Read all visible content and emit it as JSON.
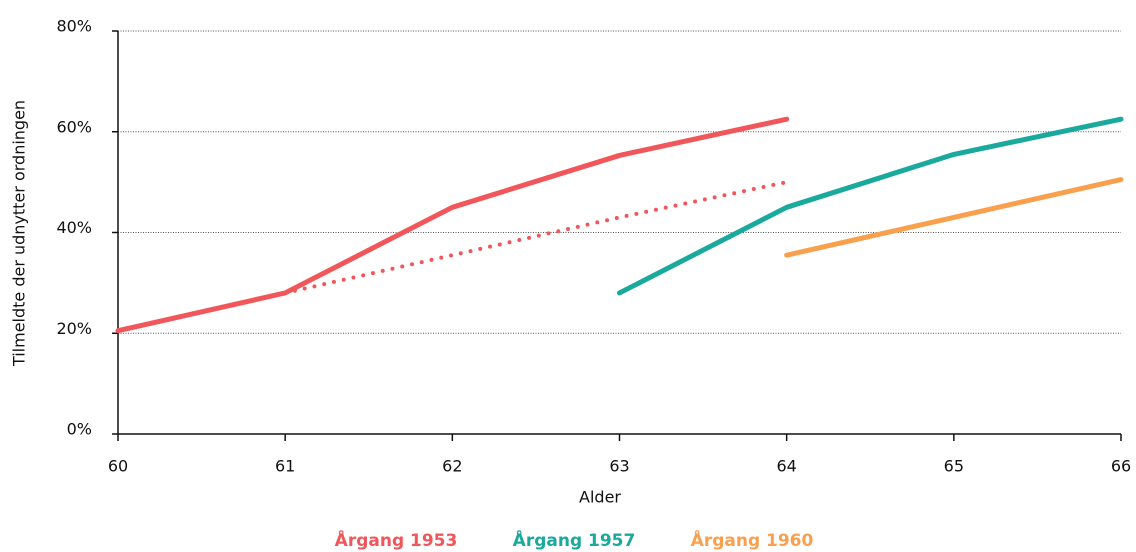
{
  "chart_data": {
    "type": "line",
    "x_label": "Alder",
    "y_label": "Tilmeldte der udnytter ordningen",
    "x": [
      60,
      61,
      62,
      63,
      64,
      65,
      66
    ],
    "series": [
      {
        "name": "Årgang 1953",
        "color": "#f0565a",
        "style": "solid",
        "values": [
          20.5,
          28,
          45,
          55.3,
          62.5,
          null,
          null
        ]
      },
      {
        "color": "#f0565a",
        "style": "dotted",
        "values": [
          null,
          28,
          35.5,
          43,
          50,
          null,
          null
        ]
      },
      {
        "name": "Årgang 1957",
        "color": "#1aa99d",
        "style": "solid",
        "values": [
          null,
          null,
          null,
          28,
          45,
          55.5,
          62.5
        ]
      },
      {
        "name": "Årgang 1960",
        "color": "#f9a04f",
        "style": "solid",
        "values": [
          null,
          null,
          null,
          null,
          35.5,
          43,
          50.5
        ]
      }
    ],
    "xlim": [
      60,
      66
    ],
    "xticks": [
      60,
      61,
      62,
      63,
      64,
      65,
      66
    ],
    "ylim": [
      0,
      80
    ],
    "yticks": [
      {
        "value": 0,
        "label": "0%"
      },
      {
        "value": 20,
        "label": "20%"
      },
      {
        "value": 40,
        "label": "40%"
      },
      {
        "value": 60,
        "label": "60%"
      },
      {
        "value": 80,
        "label": "80%"
      }
    ],
    "grid": true,
    "legend": "bottom"
  }
}
